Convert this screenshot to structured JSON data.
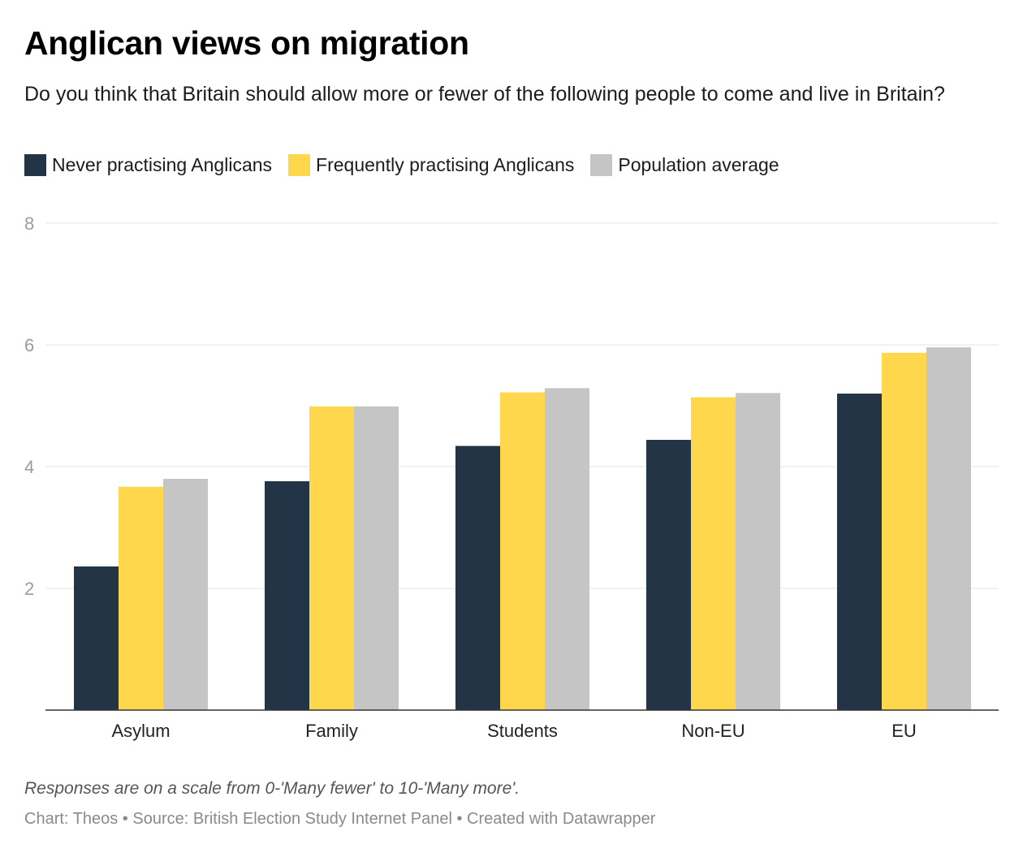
{
  "title": "Anglican views on migration",
  "subtitle": "Do you think that Britain should allow more or fewer of the following people to come and live in Britain?",
  "legend": [
    {
      "label": "Never practising Anglicans",
      "color": "#233446"
    },
    {
      "label": "Frequently practising Anglicans",
      "color": "#fed74c"
    },
    {
      "label": "Population average",
      "color": "#c5c5c5"
    }
  ],
  "chart_data": {
    "type": "bar",
    "categories": [
      "Asylum",
      "Family",
      "Students",
      "Non-EU",
      "EU"
    ],
    "series": [
      {
        "name": "Never practising Anglicans",
        "color": "#233446",
        "values": [
          2.36,
          3.76,
          4.34,
          4.44,
          5.2
        ]
      },
      {
        "name": "Frequently practising Anglicans",
        "color": "#fed74c",
        "values": [
          3.67,
          4.99,
          5.22,
          5.14,
          5.87
        ]
      },
      {
        "name": "Population average",
        "color": "#c5c5c5",
        "values": [
          3.8,
          4.99,
          5.29,
          5.21,
          5.96
        ]
      }
    ],
    "yticks": [
      "2",
      "4",
      "6",
      "8"
    ],
    "ylim": [
      0,
      8
    ],
    "xlabel": "",
    "ylabel": "",
    "grid": true
  },
  "note": "Responses are on a scale from 0-'Many fewer' to 10-'Many more'.",
  "footer": "Chart: Theos • Source: British Election Study Internet Panel • Created with Datawrapper"
}
